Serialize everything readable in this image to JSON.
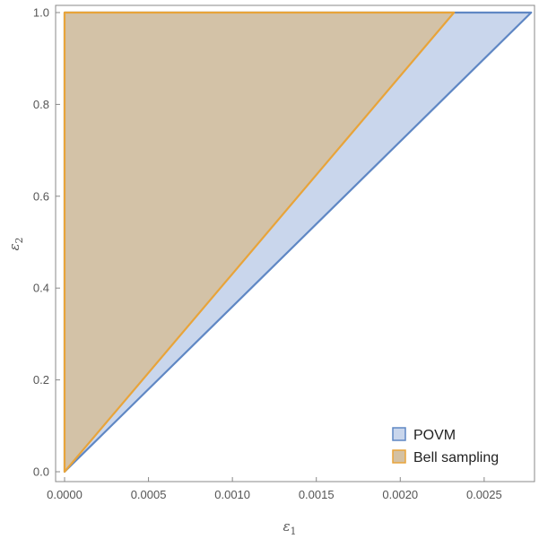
{
  "chart_data": {
    "type": "area",
    "title": "",
    "xlabel": {
      "symbol": "ε",
      "subscript": "1"
    },
    "ylabel": {
      "symbol": "ε",
      "subscript": "2"
    },
    "xlim": [
      0,
      0.0028
    ],
    "ylim": [
      0,
      1
    ],
    "x_ticks": [
      "0.0000",
      "0.0005",
      "0.0010",
      "0.0015",
      "0.0020",
      "0.0025"
    ],
    "x_tick_values": [
      0,
      0.0005,
      0.001,
      0.0015,
      0.002,
      0.0025
    ],
    "y_ticks": [
      "0.0",
      "0.2",
      "0.4",
      "0.6",
      "0.8",
      "1.0"
    ],
    "y_tick_values": [
      0,
      0.2,
      0.4,
      0.6,
      0.8,
      1.0
    ],
    "grid": false,
    "legend_position": "bottom-right",
    "series": [
      {
        "name": "POVM",
        "polygon": [
          [
            0,
            0
          ],
          [
            0,
            1
          ],
          [
            0.00278,
            1
          ]
        ],
        "fill": "#c9d6ec",
        "stroke": "#5f87c4"
      },
      {
        "name": "Bell sampling",
        "polygon": [
          [
            0,
            0
          ],
          [
            0,
            1
          ],
          [
            0.00232,
            1
          ]
        ],
        "fill": "#d4c1a3",
        "stroke": "#e8a43a"
      }
    ]
  }
}
